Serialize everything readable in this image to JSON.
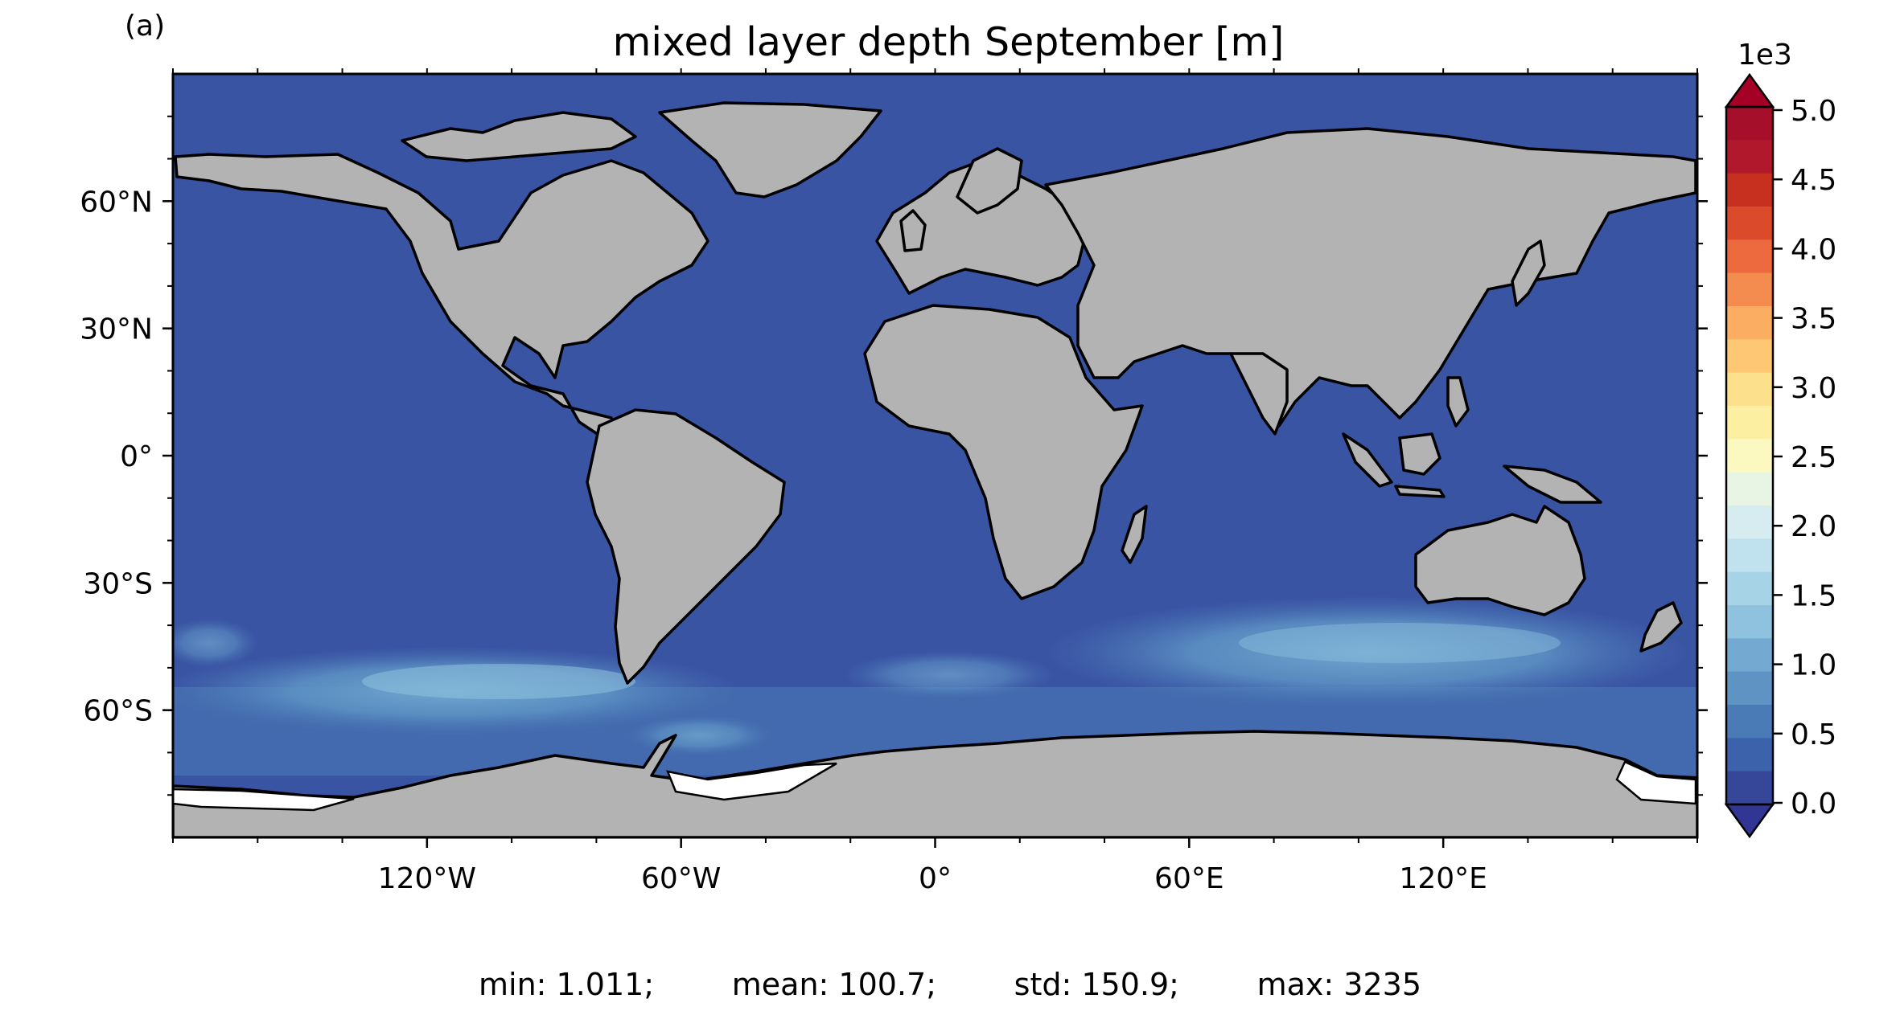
{
  "panel_label": "(a)",
  "title": "mixed layer depth September [m]",
  "map": {
    "ocean_color": "#3a54a4",
    "land_color": "#b3b3b3",
    "coast_color": "#000000",
    "lat_ticks": [
      "60°N",
      "30°N",
      "0°",
      "30°S",
      "60°S"
    ],
    "lon_ticks": [
      "120°W",
      "60°W",
      "0°",
      "60°E",
      "120°E"
    ]
  },
  "colorbar": {
    "multiplier": "1e3",
    "ticks": [
      "5.0",
      "4.5",
      "4.0",
      "3.5",
      "3.0",
      "2.5",
      "2.0",
      "1.5",
      "1.0",
      "0.5",
      "0.0"
    ],
    "colors": [
      "#a50f2a",
      "#b2182b",
      "#c7301f",
      "#dc4a2c",
      "#ec6a3e",
      "#f48b4f",
      "#fbae61",
      "#fdc774",
      "#fde08b",
      "#fdefa2",
      "#fbf8c0",
      "#e8f4e4",
      "#d6ecf1",
      "#c0e2ee",
      "#a6d3e5",
      "#8fc2de",
      "#74aad1",
      "#5e93c4",
      "#4a7bb7",
      "#3c62ab",
      "#36479a"
    ],
    "extend_min_color": "#313695",
    "extend_max_color": "#a50026"
  },
  "stats": {
    "min": "min: 1.011;",
    "mean": "mean: 100.7;",
    "std": "std: 150.9;",
    "max": "max: 3235"
  }
}
